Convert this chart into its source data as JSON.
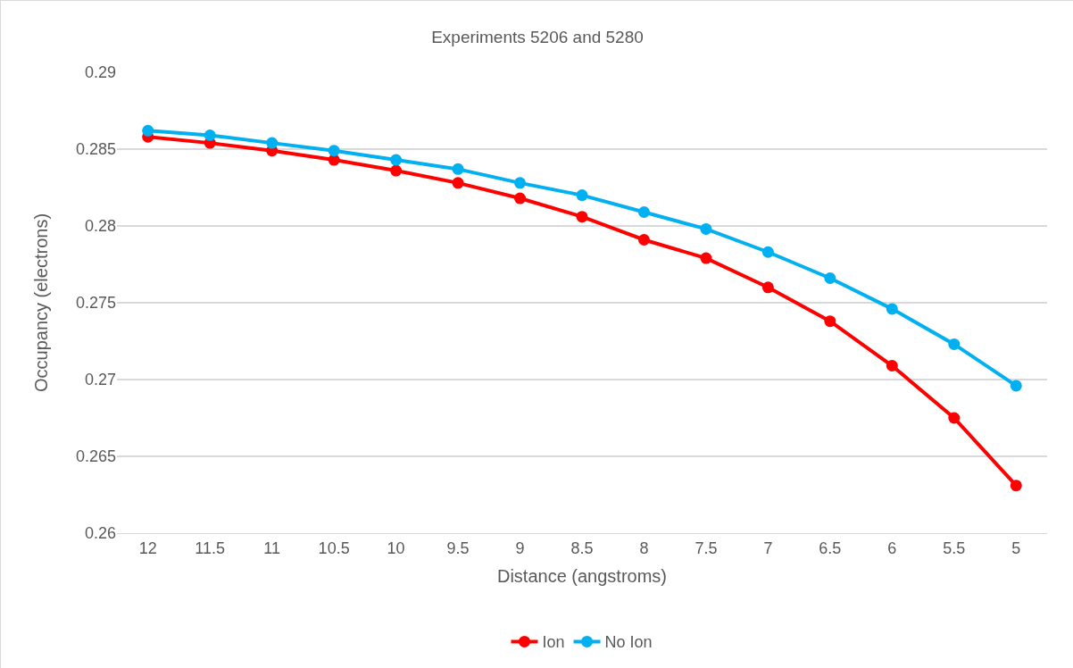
{
  "chart_data": {
    "type": "line",
    "title": "Experiments 5206 and 5280",
    "xlabel": "Distance (angstroms)",
    "ylabel": "Occupancy (electrons)",
    "categories": [
      "12",
      "11.5",
      "11",
      "10.5",
      "10",
      "9.5",
      "9",
      "8.5",
      "8",
      "7.5",
      "7",
      "6.5",
      "6",
      "5.5",
      "5"
    ],
    "series": [
      {
        "name": "Ion",
        "color": "#ff0000",
        "values": [
          0.2858,
          0.2854,
          0.2849,
          0.2843,
          0.2836,
          0.2828,
          0.2818,
          0.2806,
          0.2791,
          0.2779,
          0.276,
          0.2738,
          0.2709,
          0.2675,
          0.2631
        ]
      },
      {
        "name": "No Ion",
        "color": "#00b0f0",
        "values": [
          0.2862,
          0.2859,
          0.2854,
          0.2849,
          0.2843,
          0.2837,
          0.2828,
          0.282,
          0.2809,
          0.2798,
          0.2783,
          0.2766,
          0.2746,
          0.2723,
          0.2696
        ]
      }
    ],
    "ylim": [
      0.26,
      0.29
    ],
    "yticks": [
      0.26,
      0.265,
      0.27,
      0.275,
      0.28,
      0.285,
      0.29
    ],
    "grid": "y",
    "legend": "bottom",
    "marker": "circle",
    "line_style": "solid"
  }
}
